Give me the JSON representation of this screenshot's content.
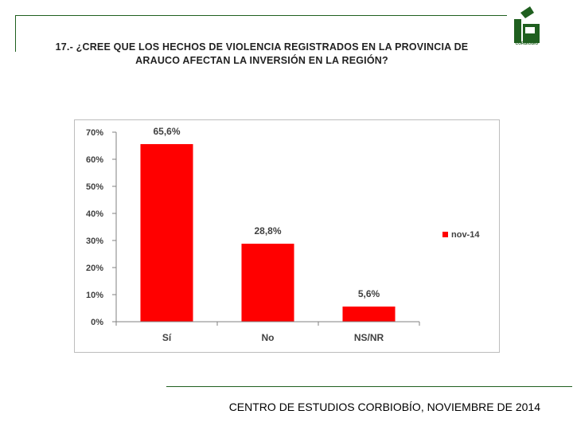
{
  "header": {
    "title_line1": "17.- ¿CREE QUE LOS HECHOS DE VIOLENCIA REGISTRADOS EN LA PROVINCIA DE",
    "title_line2": "ARAUCO AFECTAN LA INVERSIÓN EN LA REGIÓN?",
    "logo_text": "CORBIOBIO"
  },
  "footer": {
    "text": "CENTRO DE ESTUDIOS CORBIOBÍO, NOVIEMBRE DE 2014"
  },
  "colors": {
    "bar": "#ff0000",
    "brand_green": "#1f5f1f"
  },
  "chart_data": {
    "type": "bar",
    "categories": [
      "Sí",
      "No",
      "NS/NR"
    ],
    "series": [
      {
        "name": "nov-14",
        "values": [
          65.6,
          28.8,
          5.6
        ],
        "labels": [
          "65,6%",
          "28,8%",
          "5,6%"
        ]
      }
    ],
    "yticks": [
      "0%",
      "10%",
      "20%",
      "30%",
      "40%",
      "50%",
      "60%",
      "70%"
    ],
    "ylim": [
      0,
      70
    ],
    "grid": false,
    "legend": "right"
  }
}
